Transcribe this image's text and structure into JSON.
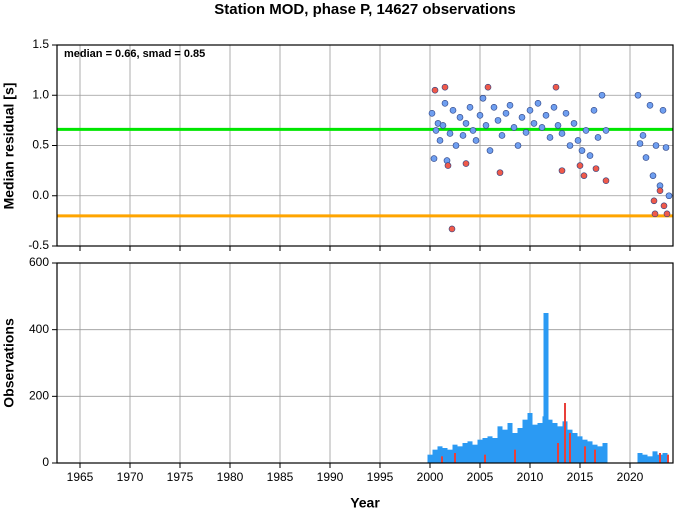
{
  "chart_data": [
    {
      "type": "scatter",
      "title": "Station MOD, phase P, 14627 observations",
      "ylabel": "Median residual [s]",
      "annotation": "median = 0.66, smad = 0.85",
      "xlim": [
        1962.7,
        2024.3
      ],
      "xticks": [
        1965,
        1970,
        1975,
        1980,
        1985,
        1990,
        1995,
        2000,
        2005,
        2010,
        2015,
        2020
      ],
      "ylim": [
        -0.5,
        1.5
      ],
      "yticks": [
        -0.5,
        {
          "value": 0,
          "label": "0.0"
        },
        0.5,
        {
          "value": 1,
          "label": "1.0"
        },
        1.5
      ],
      "grid": true,
      "hlines": [
        {
          "value": 0.66,
          "color": "#00e600"
        },
        {
          "value": -0.2,
          "color": "#ffa500"
        }
      ],
      "series": [
        {
          "color": "#6f9ff0",
          "x": [
            2000.2,
            2000.4,
            2000.6,
            2000.8,
            2001.0,
            2001.3,
            2001.5,
            2001.7,
            2002.0,
            2002.3,
            2002.6,
            2003.0,
            2003.3,
            2003.6,
            2004.0,
            2004.3,
            2004.6,
            2005.0,
            2005.3,
            2005.6,
            2006.0,
            2006.4,
            2006.8,
            2007.2,
            2007.6,
            2008.0,
            2008.4,
            2008.8,
            2009.2,
            2009.6,
            2010.0,
            2010.4,
            2010.8,
            2011.2,
            2011.6,
            2012.0,
            2012.4,
            2012.8,
            2013.2,
            2013.6,
            2014.0,
            2014.4,
            2014.8,
            2015.2,
            2015.6,
            2016.0,
            2016.4,
            2016.8,
            2017.2,
            2017.6,
            2020.8,
            2021.0,
            2021.3,
            2021.6,
            2022.0,
            2022.3,
            2022.6,
            2023.0,
            2023.3,
            2023.6,
            2023.9
          ],
          "values": [
            0.82,
            0.37,
            0.65,
            0.72,
            0.55,
            0.7,
            0.92,
            0.35,
            0.62,
            0.85,
            0.5,
            0.78,
            0.6,
            0.72,
            0.88,
            0.65,
            0.55,
            0.8,
            0.97,
            0.7,
            0.45,
            0.88,
            0.75,
            0.6,
            0.82,
            0.9,
            0.68,
            0.5,
            0.78,
            0.63,
            0.85,
            0.72,
            0.92,
            0.68,
            0.8,
            0.58,
            0.88,
            0.7,
            0.62,
            0.82,
            0.5,
            0.72,
            0.55,
            0.45,
            0.65,
            0.4,
            0.85,
            0.58,
            1.0,
            0.65,
            1.0,
            0.52,
            0.6,
            0.38,
            0.9,
            0.2,
            0.5,
            0.1,
            0.85,
            0.48,
            0.0
          ]
        },
        {
          "color": "#f05a4a",
          "x": [
            2000.5,
            2001.5,
            2001.8,
            2002.2,
            2003.6,
            2005.8,
            2007.0,
            2012.6,
            2013.2,
            2015.0,
            2015.4,
            2016.6,
            2017.6,
            2022.4,
            2022.5,
            2023.0,
            2023.4,
            2023.7
          ],
          "values": [
            1.05,
            1.08,
            0.3,
            -0.33,
            0.32,
            1.08,
            0.23,
            1.08,
            0.25,
            0.3,
            0.2,
            0.27,
            0.15,
            -0.05,
            -0.18,
            0.05,
            -0.1,
            -0.18
          ]
        }
      ]
    },
    {
      "type": "bar",
      "ylabel": "Observations",
      "xlabel": "Year",
      "xlim": [
        1962.7,
        2024.3
      ],
      "xticks": [
        1965,
        1970,
        1975,
        1980,
        1985,
        1990,
        1995,
        2000,
        2005,
        2010,
        2015,
        2020
      ],
      "ylim": [
        0,
        600
      ],
      "yticks": [
        0,
        200,
        400,
        600
      ],
      "grid": true,
      "series": [
        {
          "color": "#2b9af3",
          "x": [
            2000.0,
            2000.5,
            2001.0,
            2001.5,
            2002.0,
            2002.5,
            2003.0,
            2003.5,
            2004.0,
            2004.5,
            2005.0,
            2005.5,
            2006.0,
            2006.5,
            2007.0,
            2007.5,
            2008.0,
            2008.5,
            2009.0,
            2009.5,
            2010.0,
            2010.5,
            2011.0,
            2011.5,
            2011.6,
            2012.0,
            2012.5,
            2013.0,
            2013.5,
            2014.0,
            2014.5,
            2015.0,
            2015.5,
            2016.0,
            2016.5,
            2017.0,
            2017.5,
            2021.0,
            2021.5,
            2022.0,
            2022.5,
            2023.0,
            2023.5
          ],
          "values": [
            25,
            40,
            50,
            45,
            40,
            55,
            50,
            60,
            65,
            55,
            70,
            75,
            80,
            75,
            110,
            100,
            120,
            90,
            105,
            130,
            150,
            115,
            120,
            140,
            450,
            130,
            120,
            110,
            125,
            100,
            90,
            80,
            70,
            65,
            55,
            50,
            60,
            30,
            25,
            20,
            35,
            25,
            30
          ]
        },
        {
          "color": "#e8403a",
          "x": [
            2001.2,
            2002.5,
            2005.5,
            2008.5,
            2012.8,
            2013.5,
            2014.0,
            2015.5,
            2016.5,
            2023.0,
            2023.8
          ],
          "values": [
            20,
            30,
            25,
            40,
            60,
            180,
            90,
            50,
            40,
            30,
            25
          ]
        }
      ]
    }
  ]
}
